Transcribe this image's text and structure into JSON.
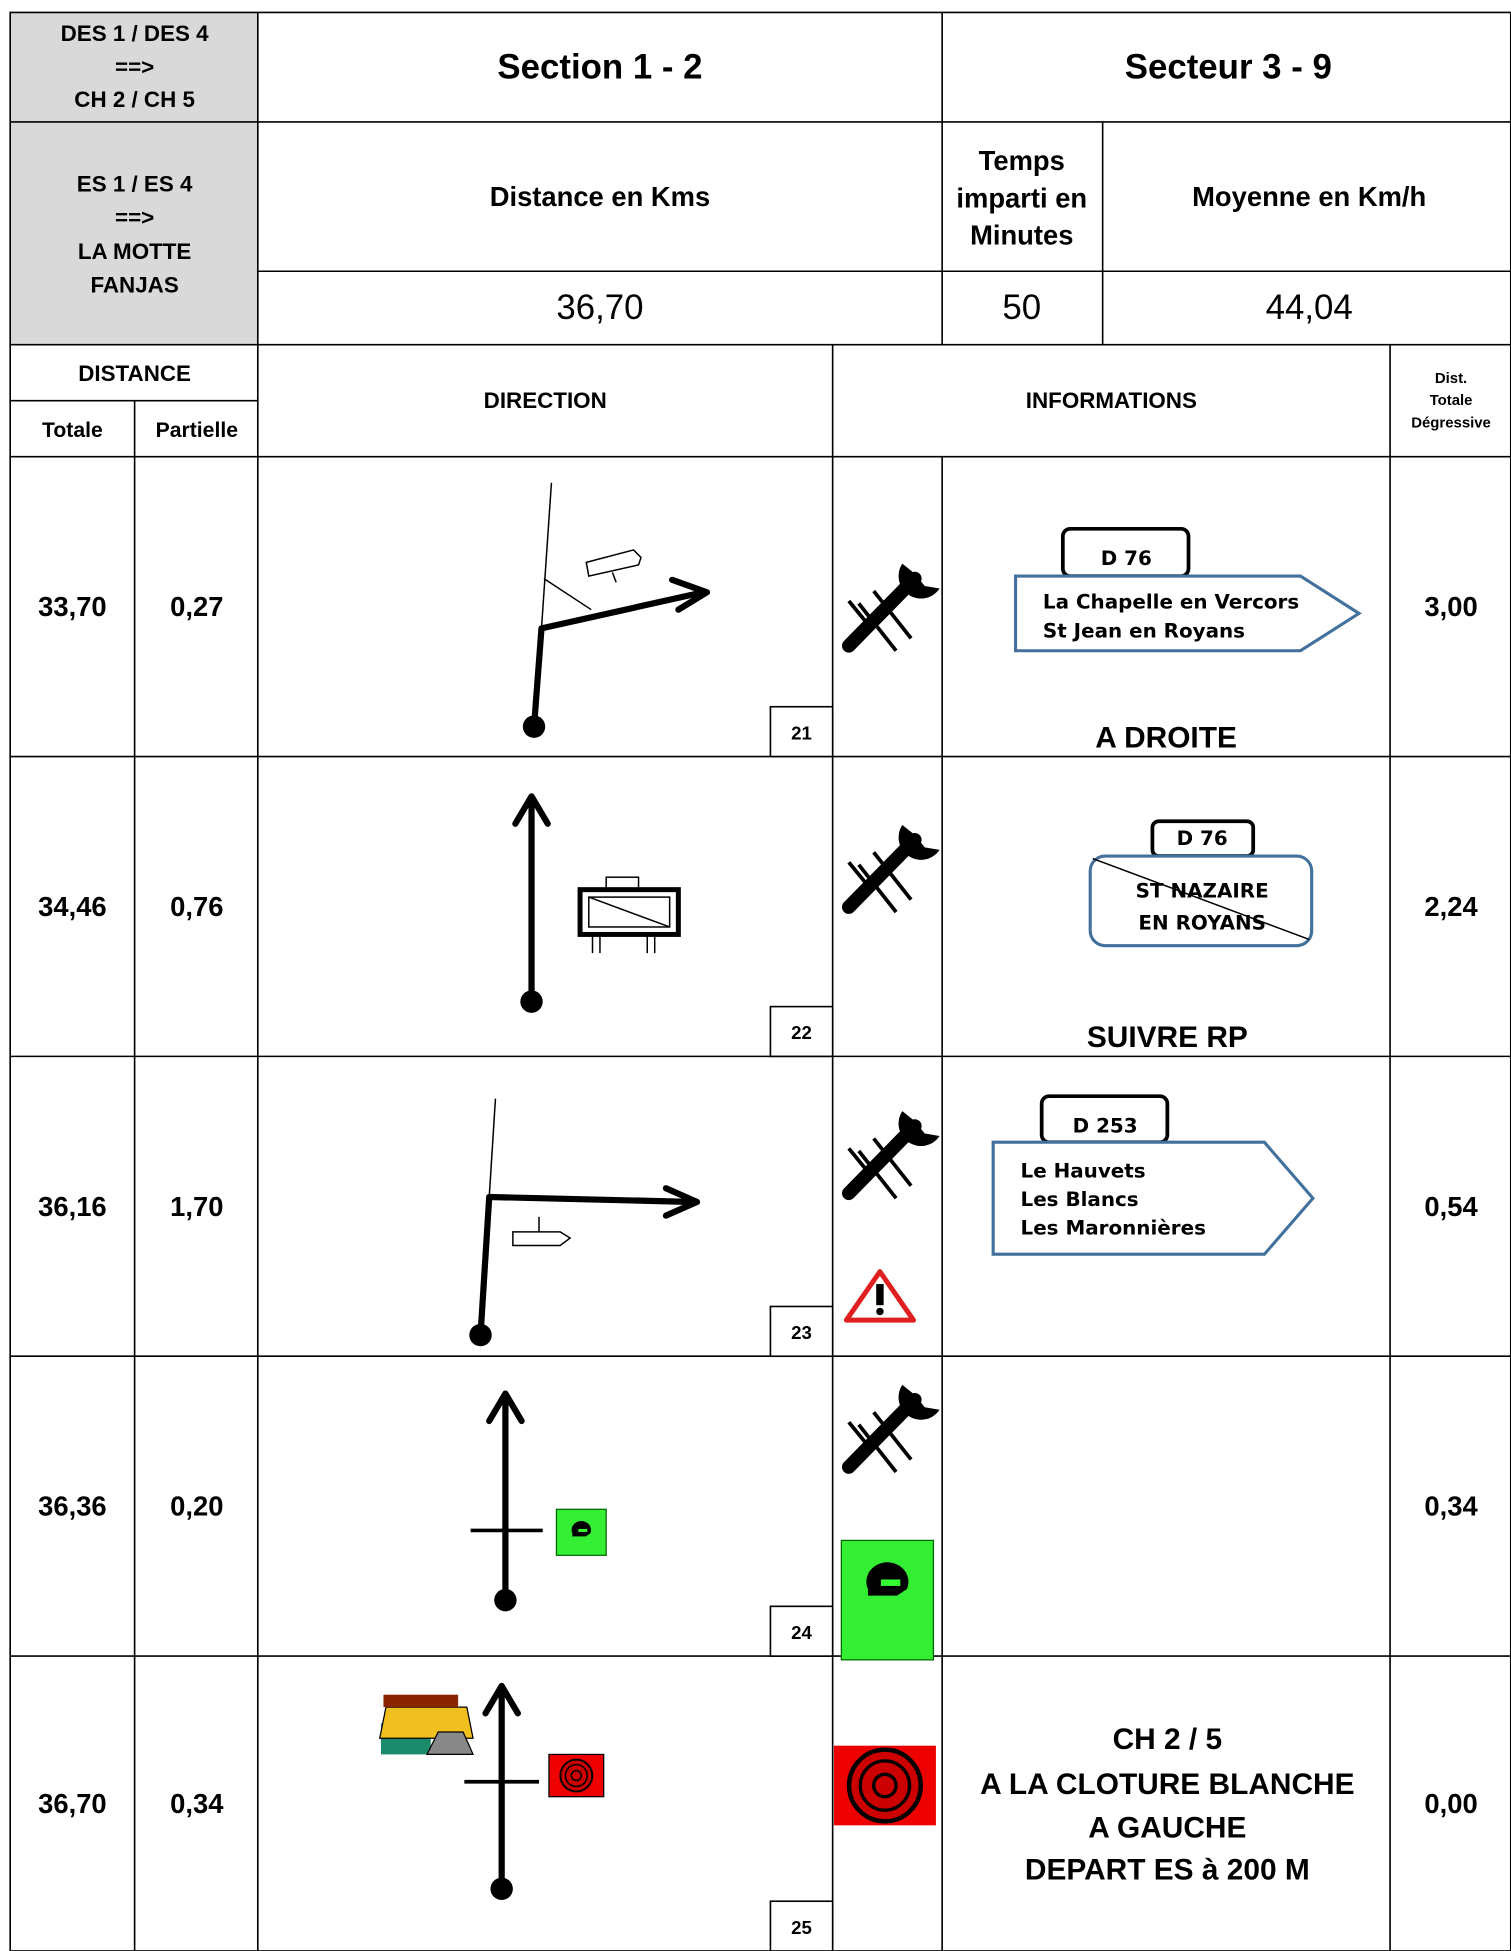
{
  "header": {
    "stage_lines": [
      "DES 1 / DES 4",
      "==>",
      "CH 2 / CH 5"
    ],
    "section": "Section 1 - 2",
    "sector": "Secteur 3 - 9"
  },
  "special_stage": {
    "name_lines": [
      "ES 1 / ES 4",
      "==>",
      "LA MOTTE",
      "FANJAS"
    ],
    "distance_label": "Distance en Kms",
    "time_label_lines": [
      "Temps",
      "imparti en",
      "Minutes"
    ],
    "average_label": "Moyenne en Km/h",
    "distance": "36,70",
    "time": "50",
    "average": "44,04"
  },
  "columns": {
    "distance": "DISTANCE",
    "total": "Totale",
    "partial": "Partielle",
    "direction": "DIRECTION",
    "information": "INFORMATIONS",
    "remaining_lines": [
      "Dist.",
      "Totale",
      "Dégressive"
    ]
  },
  "rows": [
    {
      "total": "33,70",
      "partial": "0,27",
      "number": "21",
      "sign_road": "D 76",
      "sign_lines": [
        "La Chapelle en Vercors",
        "St Jean en Royans"
      ],
      "instruction": "A DROITE",
      "remaining": "3,00"
    },
    {
      "total": "34,46",
      "partial": "0,76",
      "number": "22",
      "sign_road": "D 76",
      "sign_lines": [
        "ST NAZAIRE",
        "EN ROYANS"
      ],
      "instruction": "SUIVRE RP",
      "remaining": "2,24"
    },
    {
      "total": "36,16",
      "partial": "1,70",
      "number": "23",
      "sign_road": "D 253",
      "sign_lines": [
        "Le Hauvets",
        "Les Blancs",
        "Les Maronnières"
      ],
      "remaining": "0,54"
    },
    {
      "total": "36,36",
      "partial": "0,20",
      "number": "24",
      "remaining": "0,34"
    },
    {
      "total": "36,70",
      "partial": "0,34",
      "number": "25",
      "instruction_lines": [
        "CH 2 / 5",
        "A LA CLOTURE BLANCHE",
        "A GAUCHE",
        "DEPART ES à 200 M"
      ],
      "remaining": "0,00"
    }
  ]
}
